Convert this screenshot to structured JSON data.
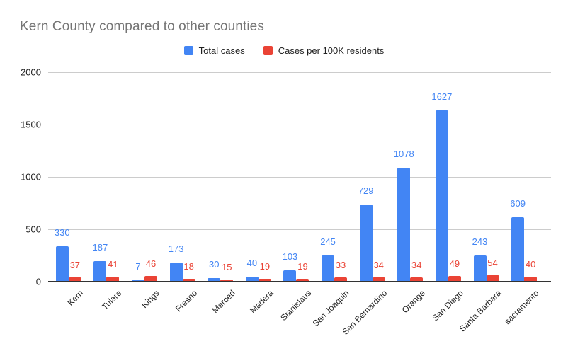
{
  "title": "Kern County compared to other counties",
  "chart_data": {
    "type": "bar",
    "title": "Kern County compared to other counties",
    "xlabel": "",
    "ylabel": "",
    "categories": [
      "Kern",
      "Tulare",
      "Kings",
      "Fresno",
      "Merced",
      "Madera",
      "Stanislaus",
      "San Joaquin",
      "San Bernardino",
      "Orange",
      "San Diego",
      "Santa Barbara",
      "sacramento"
    ],
    "series": [
      {
        "name": "Total cases",
        "color": "#4285F4",
        "values": [
          330,
          187,
          7,
          173,
          30,
          40,
          103,
          245,
          729,
          1078,
          1627,
          243,
          609
        ]
      },
      {
        "name": "Cases per 100K residents",
        "color": "#EA4335",
        "values": [
          37,
          41,
          46,
          18,
          15,
          19,
          19,
          33,
          34,
          34,
          49,
          54,
          40
        ]
      }
    ],
    "ylim": [
      0,
      2000
    ],
    "yticks": [
      0,
      500,
      1000,
      1500,
      2000
    ],
    "grid": true,
    "legend_position": "top",
    "data_labels": true
  },
  "colors": {
    "title_text": "#757575",
    "axis_text": "#222222",
    "gridline": "#cccccc",
    "axis_line": "#333333",
    "background": "#ffffff"
  }
}
